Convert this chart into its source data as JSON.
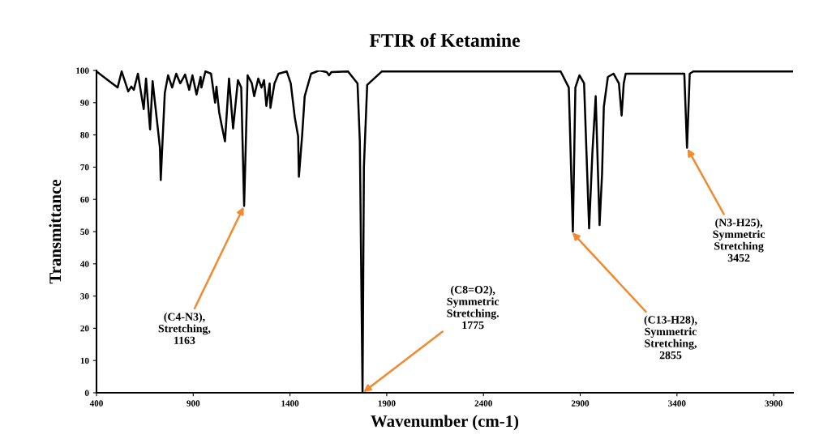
{
  "chart_data": {
    "type": "line",
    "title": "FTIR of Ketamine",
    "xlabel": "Wavenumber (cm-1)",
    "ylabel": "Transmittance",
    "xlim": [
      400,
      4000
    ],
    "xticks": [
      400,
      900,
      1400,
      1900,
      2400,
      2900,
      3400,
      3900
    ],
    "ylim": [
      0,
      100
    ],
    "yticks": [
      0,
      10,
      20,
      30,
      40,
      50,
      60,
      70,
      80,
      90,
      100
    ],
    "grid": false,
    "marker": "none",
    "line_style": "solid",
    "series": [
      {
        "color": "#000000",
        "x": [
          404,
          459,
          509,
          530,
          564,
          580,
          593,
          614,
          644,
          656,
          677,
          690,
          728,
          732,
          753,
          770,
          791,
          812,
          833,
          858,
          879,
          896,
          917,
          938,
          942,
          963,
          992,
          1013,
          1020,
          1034,
          1047,
          1064,
          1085,
          1106,
          1131,
          1148,
          1163,
          1181,
          1203,
          1215,
          1236,
          1253,
          1266,
          1278,
          1295,
          1299,
          1320,
          1341,
          1383,
          1404,
          1425,
          1442,
          1446,
          1463,
          1476,
          1509,
          1551,
          1590,
          1602,
          1614,
          1700,
          1749,
          1761,
          1775,
          1782,
          1799,
          1875,
          2799,
          2841,
          2862,
          2875,
          2896,
          2920,
          2946,
          2963,
          2980,
          3000,
          3013,
          3022,
          3043,
          3072,
          3100,
          3114,
          3125,
          3135,
          3438,
          3452,
          3466,
          3484,
          4000
        ],
        "values": [
          99.5,
          97,
          94.7,
          99.7,
          93.5,
          95,
          94,
          99,
          88,
          97.5,
          81.7,
          96.7,
          76,
          66,
          93,
          98.5,
          94.7,
          99,
          96,
          98.7,
          94,
          98.5,
          92.5,
          98,
          94.7,
          99.7,
          99,
          90,
          95,
          87,
          83,
          78,
          97.5,
          82,
          97,
          94.7,
          58,
          98.5,
          96,
          92,
          97.5,
          94.7,
          97,
          89,
          96,
          88.4,
          96,
          99,
          99.7,
          96,
          85.4,
          79.6,
          67,
          80,
          92,
          99,
          100,
          99.5,
          98.5,
          99.5,
          99.7,
          96,
          78,
          0,
          70,
          95.5,
          99.7,
          99.7,
          94.7,
          50,
          94.7,
          98.5,
          96,
          51,
          74.6,
          92,
          52,
          68,
          88.7,
          98,
          99,
          96,
          86,
          96,
          99,
          99,
          76,
          99,
          99.7,
          99.7
        ]
      }
    ],
    "annotations": [
      {
        "text": "(C4-N3),\nStretching,\n1163",
        "x": 1163,
        "y": 58
      },
      {
        "text": "(C8=O2),\nSymmetric\nStretching.\n1775",
        "x": 1775,
        "y": 0
      },
      {
        "text": "(C13-H28),\nSymmetric\nStretching,\n2855",
        "x": 2855,
        "y": 50
      },
      {
        "text": "(N3-H25),\nSymmetric\nStretching\n3452",
        "x": 3452,
        "y": 76
      }
    ]
  }
}
